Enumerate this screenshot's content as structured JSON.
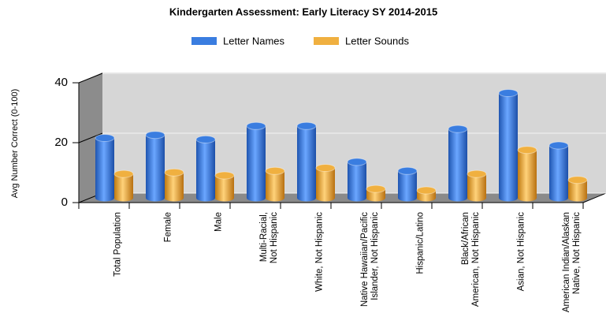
{
  "chart_data": {
    "type": "bar3d",
    "title": "Kindergarten Assessment:  Early Literacy  SY 2014-2015",
    "ylabel": "Avg Number Correct (0-100)",
    "categories": [
      "Total Population",
      "Female",
      "Male",
      "Multi-Racial,\nNot Hispanic",
      "White, Not Hispanic",
      "Native Hawaiian/Pacific\nIslander, Not Hispanic",
      "Hispanic/Latino",
      "Black/African\nAmerican, Not Hispanic",
      "Asian, Not Hispanic",
      "American Indian/Alaskan\nNative, Not Hispanic"
    ],
    "series": [
      {
        "name": "Letter Names",
        "color": "#3a7de0",
        "values": [
          20,
          21,
          19.5,
          24,
          24,
          12,
          9,
          23,
          35,
          17.5
        ]
      },
      {
        "name": "Letter Sounds",
        "color": "#f0b040",
        "values": [
          8,
          8.5,
          7.5,
          9,
          10,
          3,
          2.5,
          8,
          16,
          6
        ]
      }
    ],
    "ylim": [
      0,
      40
    ],
    "yticks": [
      0,
      20,
      40
    ],
    "grid": true,
    "legend": "top"
  }
}
